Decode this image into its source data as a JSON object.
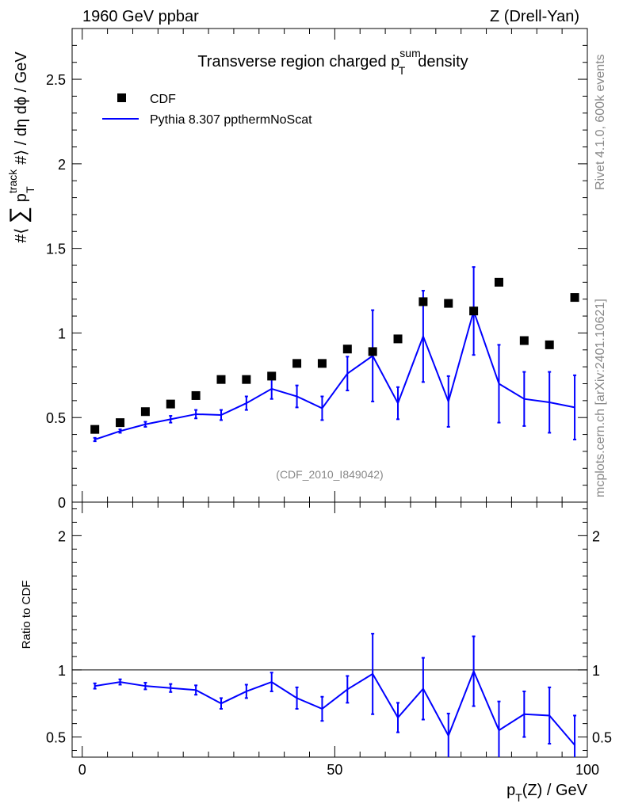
{
  "header": {
    "left": "1960 GeV ppbar",
    "right": "Z (Drell-Yan)"
  },
  "side": {
    "rivet": "Rivet 4.1.0,  600k events",
    "mcplots": "mcplots.cern.ch [arXiv:2401.10621]"
  },
  "chart_data": [
    {
      "type": "scatter",
      "title": "Transverse region charged p_T^sum density",
      "title_parts": {
        "main": "Transverse region charged p",
        "sup": "sum",
        "sub": "T",
        "tail": "density"
      },
      "ylabel": "#⟨ ∑ p_T^track #⟩ / dη dϕ / GeV",
      "ylabel_parts": {
        "pre": "#⟨ ",
        "sum": "∑",
        "p": " p",
        "sup": "track",
        "sub": "T",
        "post": " #⟩ / dη dϕ / GeV"
      },
      "xlim": [
        -2,
        100
      ],
      "ylim": [
        0,
        2.8
      ],
      "yticks": [
        0,
        0.5,
        1,
        1.5,
        2,
        2.5
      ],
      "ytick_labels": [
        "0",
        "0.5",
        "1",
        "1.5",
        "2",
        "2.5"
      ],
      "watermark": "(CDF_2010_I849042)",
      "legend": {
        "position": "top-left",
        "entries": [
          "CDF",
          "Pythia 8.307 ppthermNoScat"
        ]
      },
      "x": [
        2.5,
        7.5,
        12.5,
        17.5,
        22.5,
        27.5,
        32.5,
        37.5,
        42.5,
        47.5,
        52.5,
        57.5,
        62.5,
        67.5,
        72.5,
        77.5,
        82.5,
        87.5,
        92.5,
        97.5
      ],
      "series": [
        {
          "name": "CDF",
          "marker": "square",
          "color": "#000000",
          "values": [
            0.43,
            0.47,
            0.535,
            0.58,
            0.63,
            0.725,
            0.725,
            0.745,
            0.82,
            0.82,
            0.905,
            0.89,
            0.965,
            1.185,
            1.175,
            1.13,
            1.3,
            0.955,
            0.93,
            1.21
          ]
        },
        {
          "name": "Pythia 8.307 ppthermNoScat",
          "marker": "line",
          "color": "#0000ff",
          "values": [
            0.37,
            0.42,
            0.46,
            0.49,
            0.52,
            0.515,
            0.585,
            0.67,
            0.625,
            0.555,
            0.76,
            0.865,
            0.585,
            0.98,
            0.595,
            1.13,
            0.7,
            0.61,
            0.59,
            0.56
          ],
          "err": [
            0.01,
            0.01,
            0.015,
            0.02,
            0.025,
            0.03,
            0.04,
            0.06,
            0.065,
            0.07,
            0.1,
            0.27,
            0.095,
            0.27,
            0.15,
            0.26,
            0.23,
            0.16,
            0.18,
            0.19
          ]
        }
      ]
    },
    {
      "type": "line",
      "ylabel": "Ratio to CDF",
      "xlabel": "p_T(Z) / GeV",
      "xlabel_parts": {
        "p": "p",
        "sub": "T",
        "tail": "(Z) / GeV"
      },
      "xlim": [
        -2,
        100
      ],
      "ylim": [
        0.35,
        2.25
      ],
      "xticks": [
        0,
        50,
        100
      ],
      "xtick_labels": [
        "0",
        "50",
        "100"
      ],
      "yticks": [
        0.5,
        1,
        2
      ],
      "ytick_labels": [
        "0.5",
        "1",
        "2"
      ],
      "reference": 1,
      "x": [
        2.5,
        7.5,
        12.5,
        17.5,
        22.5,
        27.5,
        32.5,
        37.5,
        42.5,
        47.5,
        52.5,
        57.5,
        62.5,
        67.5,
        72.5,
        77.5,
        82.5,
        87.5,
        92.5,
        97.5
      ],
      "series": [
        {
          "name": "Pythia 8.307 ppthermNoScat / CDF",
          "color": "#0000ff",
          "values": [
            0.88,
            0.91,
            0.88,
            0.865,
            0.85,
            0.75,
            0.84,
            0.91,
            0.79,
            0.71,
            0.855,
            0.97,
            0.645,
            0.86,
            0.51,
            0.99,
            0.55,
            0.67,
            0.66,
            0.44
          ],
          "err": [
            0.02,
            0.02,
            0.025,
            0.03,
            0.035,
            0.04,
            0.05,
            0.07,
            0.08,
            0.09,
            0.1,
            0.3,
            0.11,
            0.23,
            0.165,
            0.26,
            0.215,
            0.17,
            0.21,
            0.22
          ]
        }
      ]
    }
  ]
}
